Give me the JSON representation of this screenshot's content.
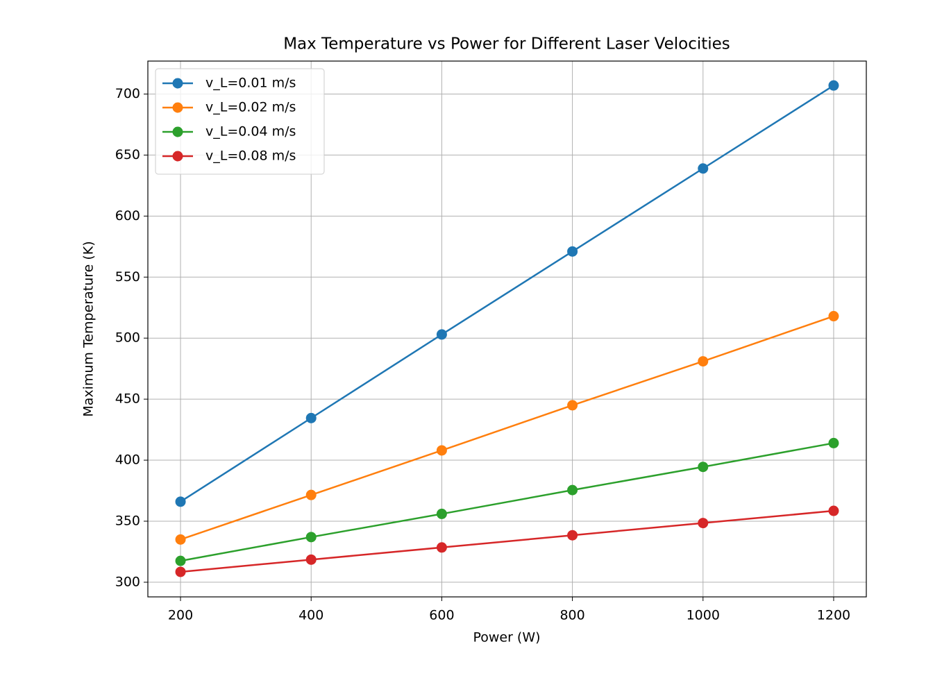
{
  "chart_data": {
    "type": "line",
    "title": "Max Temperature vs Power for Different Laser Velocities",
    "x_label": "Power (W)",
    "y_label": "Maximum Temperature (K)",
    "x": [
      200,
      400,
      600,
      800,
      1000,
      1200
    ],
    "series": [
      {
        "name": "v_L=0.01 m/s",
        "color": "#1f77b4",
        "values": [
          366,
          434.5,
          503,
          571,
          639,
          707
        ]
      },
      {
        "name": "v_L=0.02 m/s",
        "color": "#ff7f0e",
        "values": [
          335,
          371.5,
          408,
          445,
          481,
          518
        ]
      },
      {
        "name": "v_L=0.04 m/s",
        "color": "#2ca02c",
        "values": [
          317.5,
          337,
          356,
          375.5,
          394.5,
          414
        ]
      },
      {
        "name": "v_L=0.08 m/s",
        "color": "#d62728",
        "values": [
          308.5,
          318.5,
          328.5,
          338.5,
          348.5,
          358.5
        ]
      }
    ],
    "xlim": [
      150,
      1250
    ],
    "ylim": [
      288,
      727
    ],
    "xticks": [
      200,
      400,
      600,
      800,
      1000,
      1200
    ],
    "yticks": [
      300,
      350,
      400,
      450,
      500,
      550,
      600,
      650,
      700
    ],
    "grid": true,
    "legend": "upper-left"
  }
}
